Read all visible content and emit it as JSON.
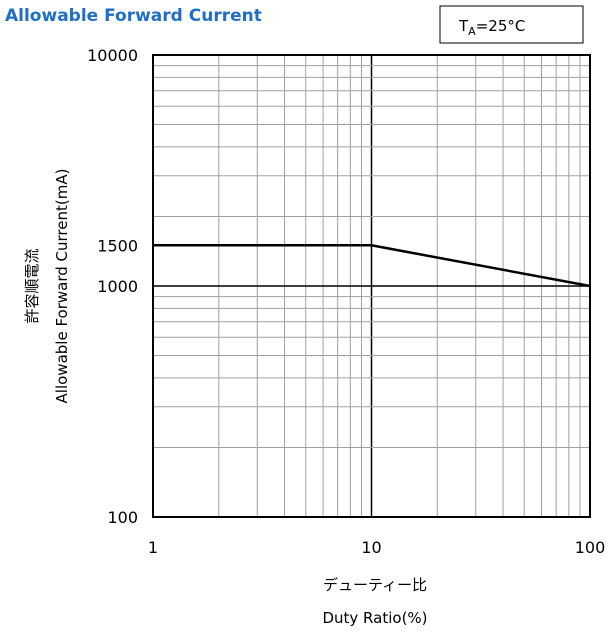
{
  "chart_data": {
    "type": "line",
    "title": "Allowable Forward Current",
    "condition": {
      "prefix": "T",
      "subscript": "A",
      "value": "=25°C"
    },
    "x_scale": "log",
    "y_scale": "log",
    "xlim": [
      1,
      100
    ],
    "ylim": [
      100,
      10000
    ],
    "x_ticks": [
      {
        "value": 1,
        "label": "1"
      },
      {
        "value": 10,
        "label": "10"
      },
      {
        "value": 100,
        "label": "100"
      }
    ],
    "y_ticks": [
      {
        "value": 100,
        "label": "100"
      },
      {
        "value": 1000,
        "label": "1000"
      },
      {
        "value": 1500,
        "label": "1500"
      },
      {
        "value": 10000,
        "label": "10000"
      }
    ],
    "xlabel_jp": "デューティー比",
    "xlabel": "Duty Ratio(%)",
    "ylabel_jp": "許容順電流",
    "ylabel": "Allowable Forward Current(mA)",
    "grid": true,
    "series": [
      {
        "x": [
          1,
          10,
          100
        ],
        "y": [
          1500,
          1500,
          1000
        ]
      }
    ],
    "colors": {
      "title": "#1f6fc5",
      "line": "#000000",
      "grid": "#a0a0a0"
    }
  }
}
